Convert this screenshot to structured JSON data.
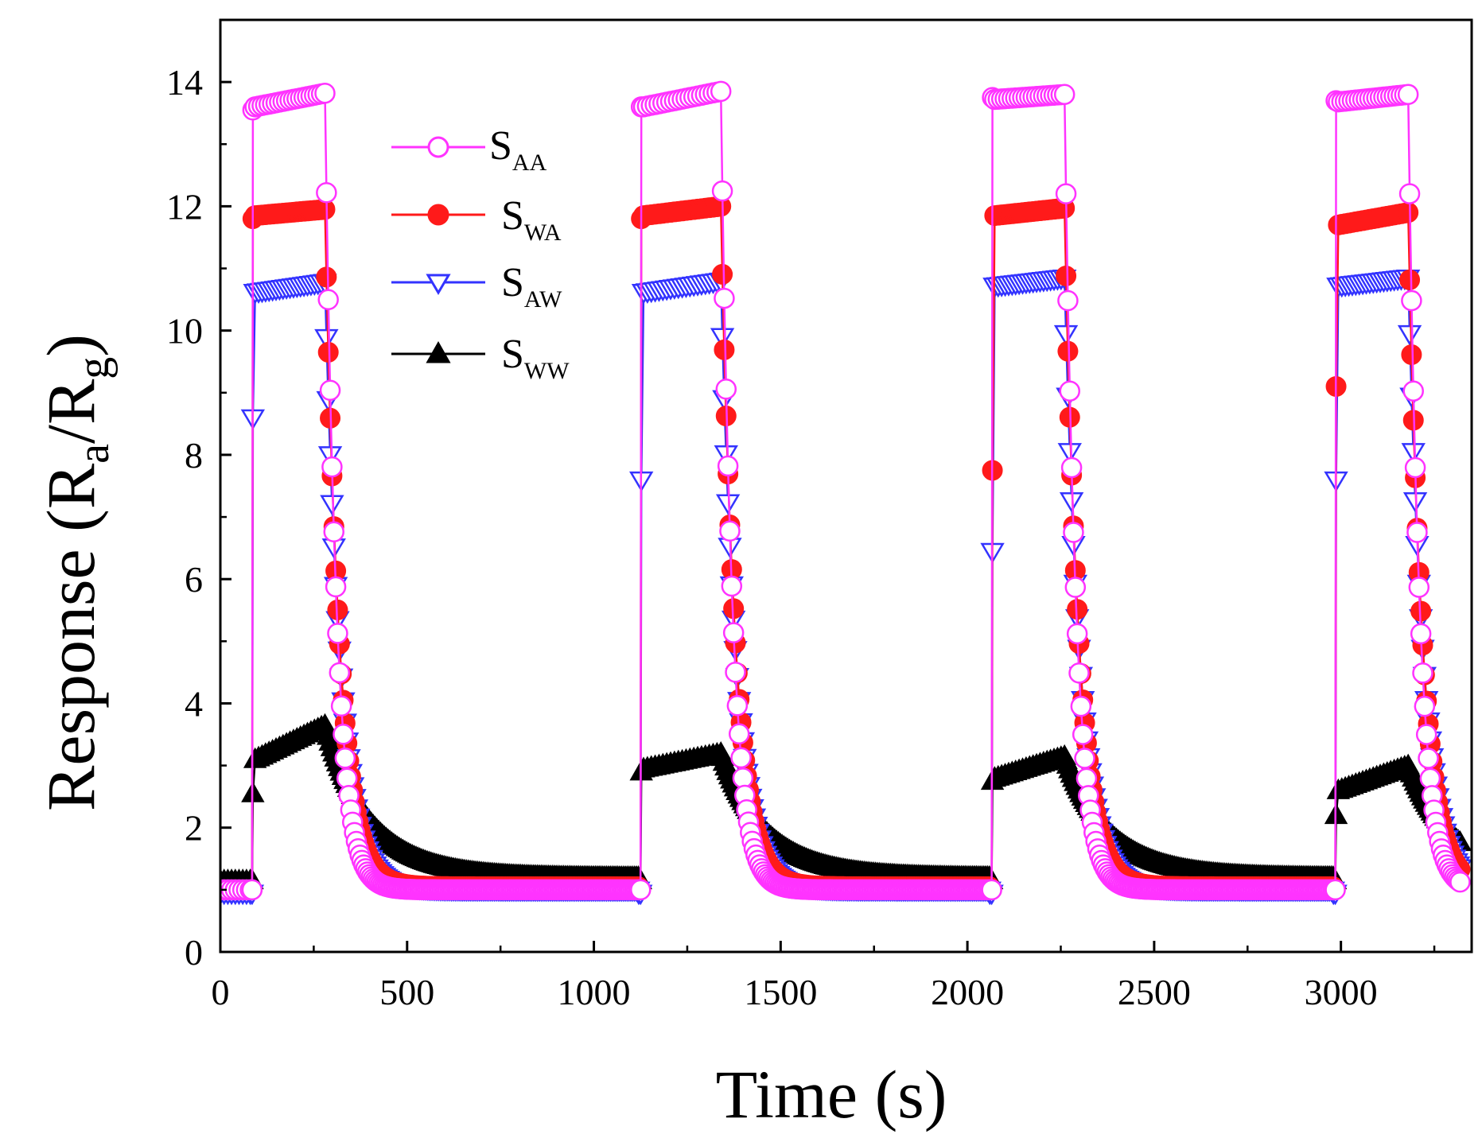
{
  "chart_data": {
    "type": "line",
    "title": "",
    "xlabel": "Time (s)",
    "ylabel": {
      "prefix": "Response (R",
      "sub1": "a",
      "mid": "/R",
      "sub2": "g",
      "suffix": ")"
    },
    "xlim": [
      0,
      3350
    ],
    "ylim": [
      0,
      15
    ],
    "xticks": [
      0,
      500,
      1000,
      1500,
      2000,
      2500,
      3000
    ],
    "yticks": [
      0,
      2,
      4,
      6,
      8,
      10,
      12,
      14
    ],
    "grid": false,
    "legend_position": "upper-left-center",
    "cycles": [
      {
        "on": 85,
        "off": 280,
        "end": 1120
      },
      {
        "on": 1125,
        "off": 1340,
        "end": 2060
      },
      {
        "on": 2065,
        "off": 2260,
        "end": 2980
      },
      {
        "on": 2985,
        "off": 3180,
        "end": 3320
      }
    ],
    "series": [
      {
        "name": "S",
        "sub": "AA",
        "color": "#ff33ff",
        "marker": "circle-open",
        "baseline": 1.0,
        "tail": 1.0,
        "decay_tau": 30,
        "rise": [
          13.55,
          13.6,
          13.75,
          13.7
        ],
        "plateau": [
          [
            13.6,
            13.82
          ],
          [
            13.6,
            13.85
          ],
          [
            13.72,
            13.8
          ],
          [
            13.68,
            13.8
          ]
        ]
      },
      {
        "name": "S",
        "sub": "WA",
        "color": "#ff1a1a",
        "marker": "circle-filled",
        "baseline": 1.0,
        "tail": 1.05,
        "decay_tau": 38,
        "rise": [
          11.8,
          11.8,
          7.75,
          9.1
        ],
        "plateau": [
          [
            11.85,
            11.95
          ],
          [
            11.85,
            12.0
          ],
          [
            11.85,
            11.97
          ],
          [
            11.7,
            11.9
          ]
        ]
      },
      {
        "name": "S",
        "sub": "AW",
        "color": "#3333ff",
        "marker": "triangle-down-open",
        "baseline": 0.95,
        "tail": 1.0,
        "decay_tau": 42,
        "rise": [
          8.6,
          7.6,
          6.45,
          7.6
        ],
        "plateau": [
          [
            10.62,
            10.78
          ],
          [
            10.62,
            10.8
          ],
          [
            10.72,
            10.85
          ],
          [
            10.72,
            10.85
          ]
        ]
      },
      {
        "name": "S",
        "sub": "WW",
        "color": "#000000",
        "marker": "triangle-up-filled",
        "baseline": 1.15,
        "tail": 1.2,
        "decay_tau": 120,
        "rise": [
          2.55,
          2.9,
          2.75,
          2.2
        ],
        "plateau": [
          [
            3.1,
            3.65
          ],
          [
            2.95,
            3.2
          ],
          [
            2.8,
            3.15
          ],
          [
            2.6,
            3.0
          ]
        ]
      }
    ]
  }
}
